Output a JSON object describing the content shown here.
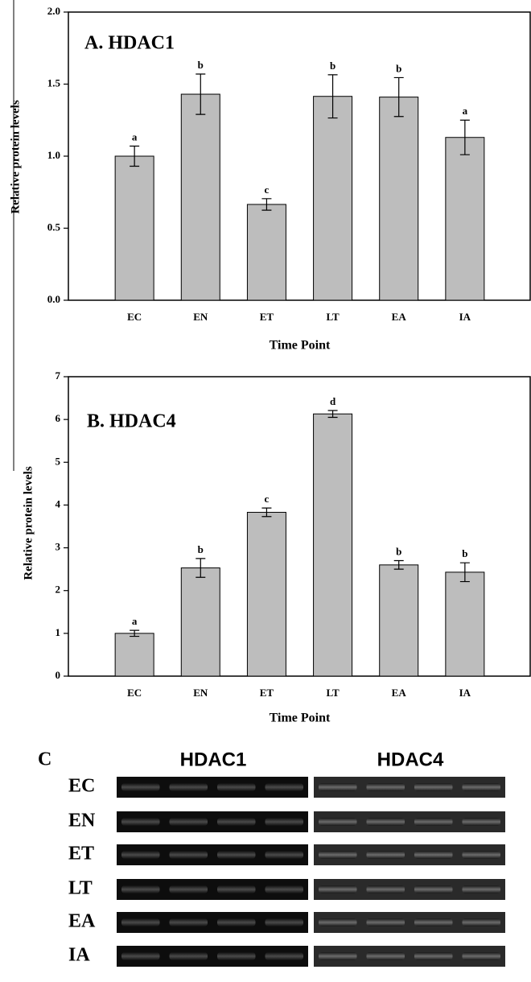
{
  "chart_data": [
    {
      "type": "bar",
      "title": "A. HDAC1",
      "x_label": "Time Point",
      "y_label": "Relative protein levels",
      "categories": [
        "EC",
        "EN",
        "ET",
        "LT",
        "EA",
        "IA"
      ],
      "values": [
        1.0,
        1.43,
        0.665,
        1.415,
        1.41,
        1.13
      ],
      "errors": [
        0.07,
        0.14,
        0.04,
        0.15,
        0.135,
        0.12
      ],
      "annotations": [
        "a",
        "b",
        "c",
        "b",
        "b",
        "a"
      ],
      "color": "#bdbdbd",
      "ylim": [
        0,
        2
      ],
      "yticks": [
        {
          "value": 0,
          "label": "0.0"
        },
        {
          "value": 0.5,
          "label": "0.5"
        },
        {
          "value": 1,
          "label": "1.0"
        },
        {
          "value": 1.5,
          "label": "1.5"
        },
        {
          "value": 2,
          "label": "2.0"
        }
      ]
    },
    {
      "type": "bar",
      "title": "B. HDAC4",
      "x_label": "Time Point",
      "y_label": "Relative protein levels",
      "categories": [
        "EC",
        "EN",
        "ET",
        "LT",
        "EA",
        "IA"
      ],
      "values": [
        1.0,
        2.53,
        3.83,
        6.13,
        2.6,
        2.43
      ],
      "errors": [
        0.07,
        0.22,
        0.1,
        0.08,
        0.1,
        0.22
      ],
      "annotations": [
        "a",
        "b",
        "c",
        "d",
        "b",
        "b"
      ],
      "color": "#bdbdbd",
      "ylim": [
        0,
        7
      ],
      "yticks": [
        0,
        1,
        2,
        3,
        4,
        5,
        6,
        7
      ]
    }
  ],
  "blot": {
    "label": "C",
    "columns": [
      "HDAC1",
      "HDAC4"
    ],
    "rows": [
      "EC",
      "EN",
      "ET",
      "LT",
      "EA",
      "IA"
    ]
  }
}
